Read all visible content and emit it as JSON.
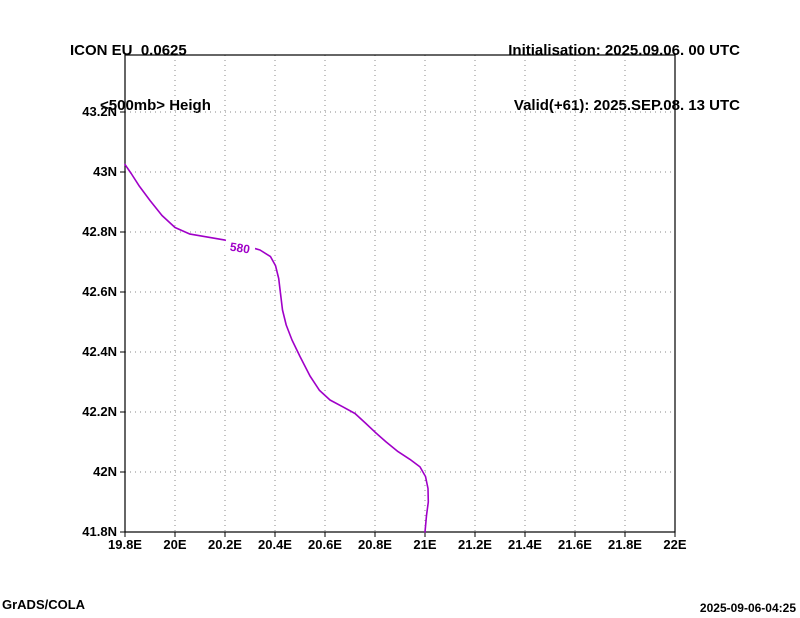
{
  "header": {
    "model_line": "ICON EU  0.0625",
    "level_line": "<500mb> Heigh",
    "init_line": "Initialisation: 2025.09.06. 00 UTC",
    "valid_line": "Valid(+61): 2025.SEP.08. 13 UTC"
  },
  "footer": {
    "left": "GrADS/COLA",
    "right": "2025-09-06-04:25"
  },
  "chart_data": {
    "type": "line",
    "title": "",
    "xlabel": "",
    "ylabel": "",
    "xlim": [
      19.8,
      22.0
    ],
    "ylim": [
      41.8,
      43.39
    ],
    "grid": "dotted",
    "grid_color": "#8a8a8a",
    "axis_color": "#000000",
    "x_ticks": [
      19.8,
      20,
      20.2,
      20.4,
      20.6,
      20.8,
      21,
      21.2,
      21.4,
      21.6,
      21.8,
      22
    ],
    "x_tick_labels": [
      "19.8E",
      "20E",
      "20.2E",
      "20.4E",
      "20.6E",
      "20.8E",
      "21E",
      "21.2E",
      "21.4E",
      "21.6E",
      "21.8E",
      "22E"
    ],
    "y_ticks": [
      41.8,
      42,
      42.2,
      42.4,
      42.6,
      42.8,
      43,
      43.2
    ],
    "y_tick_labels": [
      "41.8N",
      "42N",
      "42.2N",
      "42.4N",
      "42.6N",
      "42.8N",
      "43N",
      "43.2N"
    ],
    "legend": "none",
    "series": [
      {
        "name": "500mb-height-contour",
        "contour_value": 580,
        "label": "580",
        "color": "#a000c8",
        "label_at": [
          20.26,
          42.748
        ],
        "points": [
          [
            19.8,
            43.025
          ],
          [
            19.825,
            42.995
          ],
          [
            19.858,
            42.952
          ],
          [
            19.9,
            42.905
          ],
          [
            19.948,
            42.855
          ],
          [
            20.0,
            42.815
          ],
          [
            20.06,
            42.793
          ],
          [
            20.13,
            42.783
          ],
          [
            20.2,
            42.773
          ],
          [
            20.27,
            42.757
          ],
          [
            20.34,
            42.74
          ],
          [
            20.382,
            42.718
          ],
          [
            20.402,
            42.688
          ],
          [
            20.415,
            42.645
          ],
          [
            20.422,
            42.595
          ],
          [
            20.43,
            42.54
          ],
          [
            20.445,
            42.49
          ],
          [
            20.468,
            42.44
          ],
          [
            20.5,
            42.385
          ],
          [
            20.54,
            42.32
          ],
          [
            20.578,
            42.272
          ],
          [
            20.62,
            42.24
          ],
          [
            20.672,
            42.217
          ],
          [
            20.72,
            42.195
          ],
          [
            20.762,
            42.163
          ],
          [
            20.8,
            42.133
          ],
          [
            20.845,
            42.1
          ],
          [
            20.892,
            42.068
          ],
          [
            20.94,
            42.042
          ],
          [
            20.98,
            42.017
          ],
          [
            21.002,
            41.985
          ],
          [
            21.012,
            41.945
          ],
          [
            21.013,
            41.9
          ],
          [
            21.006,
            41.855
          ],
          [
            21.0,
            41.8
          ]
        ]
      }
    ]
  }
}
